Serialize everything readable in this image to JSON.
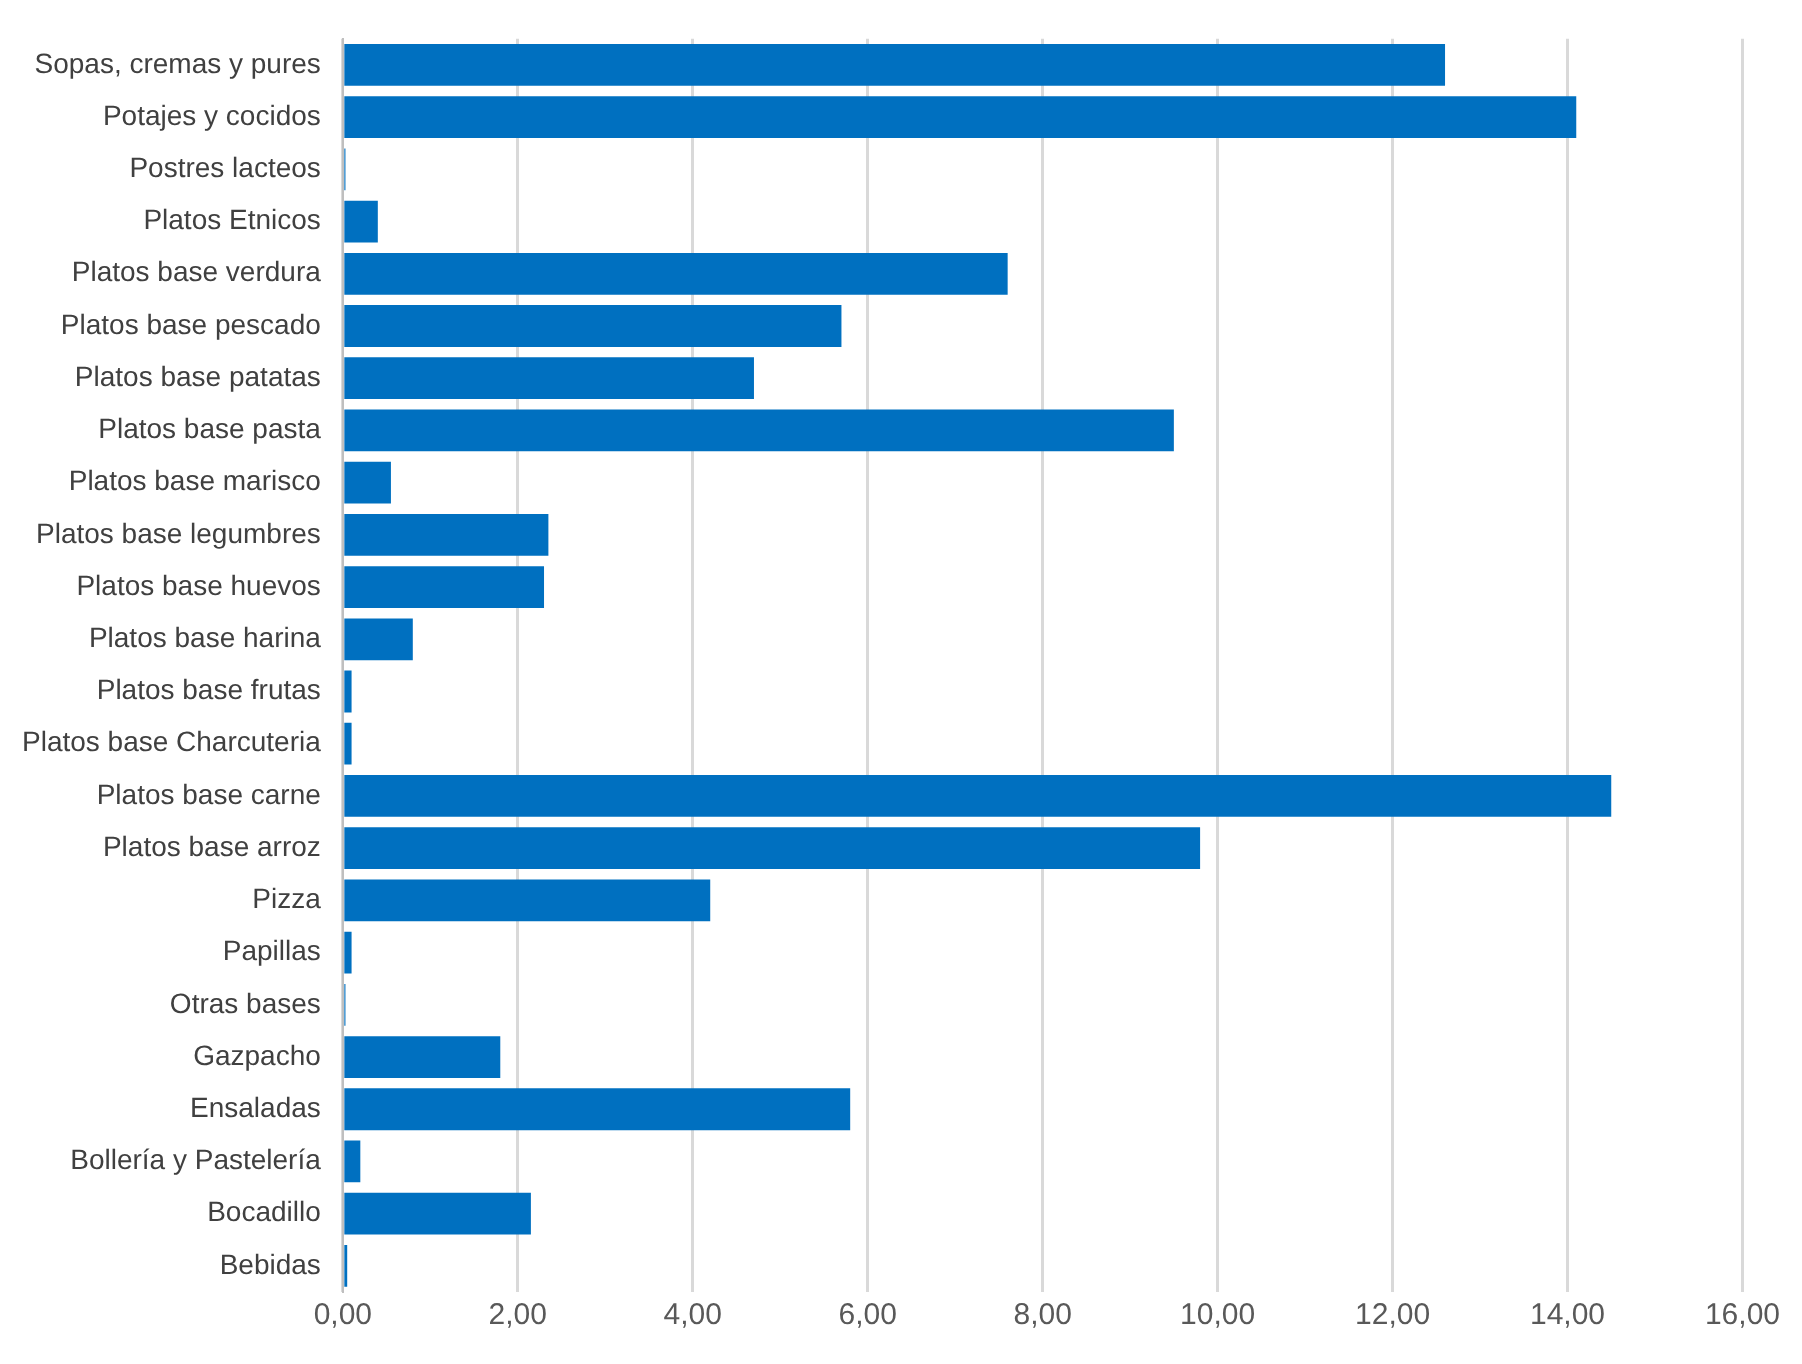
{
  "chart_data": {
    "type": "bar",
    "orientation": "horizontal",
    "categories": [
      "Sopas, cremas y pures",
      "Potajes y cocidos",
      "Postres lacteos",
      "Platos Etnicos",
      "Platos base verdura",
      "Platos base pescado",
      "Platos base patatas",
      "Platos base pasta",
      "Platos base marisco",
      "Platos base legumbres",
      "Platos base huevos",
      "Platos base harina",
      "Platos base frutas",
      "Platos base Charcuteria",
      "Platos base carne",
      "Platos base arroz",
      "Pizza",
      "Papillas",
      "Otras bases",
      "Gazpacho",
      "Ensaladas",
      "Bollería y Pastelería",
      "Bocadillo",
      "Bebidas"
    ],
    "values": [
      12.6,
      14.1,
      0.03,
      0.4,
      7.6,
      5.7,
      4.7,
      9.5,
      0.55,
      2.35,
      2.3,
      0.8,
      0.1,
      0.1,
      14.5,
      9.8,
      4.2,
      0.1,
      0.03,
      1.8,
      5.8,
      0.2,
      2.15,
      0.05
    ],
    "color": "#0070c0",
    "xlim": [
      0,
      16
    ],
    "xticks": [
      {
        "value": 0,
        "label": "0,00"
      },
      {
        "value": 2,
        "label": "2,00"
      },
      {
        "value": 4,
        "label": "4,00"
      },
      {
        "value": 6,
        "label": "6,00"
      },
      {
        "value": 8,
        "label": "8,00"
      },
      {
        "value": 10,
        "label": "10,00"
      },
      {
        "value": 12,
        "label": "12,00"
      },
      {
        "value": 14,
        "label": "14,00"
      },
      {
        "value": 16,
        "label": "16,00"
      }
    ],
    "grid": "x",
    "legend": false
  }
}
